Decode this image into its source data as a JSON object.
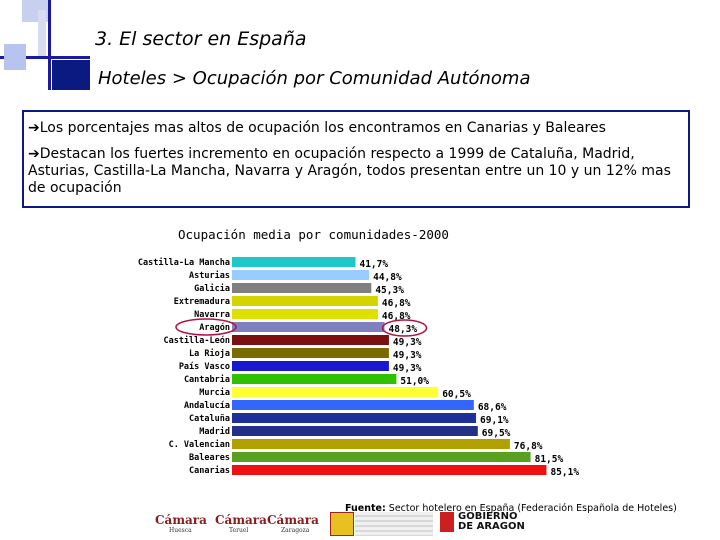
{
  "slide": {
    "title": "3.  El sector en España",
    "subtitle": "Hoteles > Ocupación por Comunidad Autónoma",
    "bullets": [
      "Los porcentajes mas altos de ocupación los encontramos en Canarias y Baleares",
      "Destacan los fuertes incremento en ocupación respecto a 1999 de Cataluña, Madrid, Asturias, Castilla-La Mancha, Navarra y Aragón, todos presentan entre un 10 y un 12% mas de ocupación"
    ],
    "bullet_icon": "right-arrow-icon",
    "source_label": "Fuente:",
    "source_text": " Sector hotelero en España (Federación Española de Hoteles)"
  },
  "logos": {
    "camara_1": "Cámara",
    "camara_1_sub": "Huesca",
    "camara_2": "Cámara",
    "camara_2_sub": "Teruel",
    "camara_3": "Cámara",
    "camara_3_sub": "Zaragoza",
    "gob_line1": "GOBIERNO",
    "gob_line2": "DE ARAGON"
  },
  "chart_data": {
    "type": "bar",
    "orientation": "horizontal",
    "title": "Ocupación media por comunidades-2000",
    "categories": [
      "Castilla-La Mancha",
      "Asturias",
      "Galicia",
      "Extremadura",
      "Navarra",
      "Aragón",
      "Castilla-León",
      "La Rioja",
      "País Vasco",
      "Cantabria",
      "Murcia",
      "Andalucía",
      "Cataluña",
      "Madrid",
      "C. Valencian",
      "Baleares",
      "Canarias"
    ],
    "values": [
      41.7,
      44.8,
      45.3,
      46.8,
      46.8,
      48.3,
      49.3,
      49.3,
      49.3,
      51.0,
      60.5,
      68.6,
      69.1,
      69.5,
      76.8,
      81.5,
      85.1
    ],
    "value_labels": [
      "41,7%",
      "44,8%",
      "45,3%",
      "46,8%",
      "46,8%",
      "48,3%",
      "49,3%",
      "49,3%",
      "49,3%",
      "51,0%",
      "60,5%",
      "68,6%",
      "69,1%",
      "69,5%",
      "76,8%",
      "81,5%",
      "85,1%"
    ],
    "colors": [
      "#1ec8c8",
      "#99ccff",
      "#808080",
      "#d4d400",
      "#e0e000",
      "#8080c0",
      "#7a1010",
      "#7a6a00",
      "#1818d0",
      "#30c000",
      "#ffff33",
      "#3366ff",
      "#1f2f99",
      "#233089",
      "#b0a000",
      "#59a020",
      "#ee1111"
    ],
    "highlighted": "Aragón",
    "xlim": [
      0,
      100
    ],
    "grid": false
  }
}
